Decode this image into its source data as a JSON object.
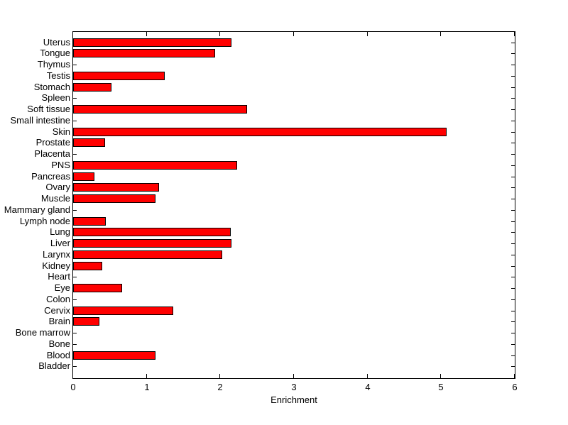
{
  "chart_data": {
    "type": "bar",
    "orientation": "horizontal",
    "title": "",
    "xlabel": "Enrichment",
    "ylabel": "",
    "xlim": [
      0,
      6
    ],
    "xticks": [
      0,
      1,
      2,
      3,
      4,
      5,
      6
    ],
    "category_order": "top-to-bottom",
    "categories": [
      "Uterus",
      "Tongue",
      "Thymus",
      "Testis",
      "Stomach",
      "Spleen",
      "Soft tissue",
      "Small intestine",
      "Skin",
      "Prostate",
      "Placenta",
      "PNS",
      "Pancreas",
      "Ovary",
      "Muscle",
      "Mammary gland",
      "Lymph node",
      "Lung",
      "Liver",
      "Larynx",
      "Kidney",
      "Heart",
      "Eye",
      "Colon",
      "Cervix",
      "Brain",
      "Bone marrow",
      "Bone",
      "Blood",
      "Bladder"
    ],
    "values": [
      2.15,
      1.93,
      0,
      1.24,
      0.52,
      0,
      2.36,
      0,
      5.07,
      0.43,
      0,
      2.23,
      0.29,
      1.17,
      1.12,
      0,
      0.44,
      2.14,
      2.15,
      2.03,
      0.4,
      0,
      0.67,
      0,
      1.36,
      0.36,
      0,
      0,
      1.12,
      0
    ],
    "bar_color": "#ff0000",
    "bar_edge_color": "#000000",
    "axis_color": "#000000",
    "background_color": "#ffffff",
    "grid": false,
    "legend": "none",
    "bar_width_fraction": 0.8
  }
}
